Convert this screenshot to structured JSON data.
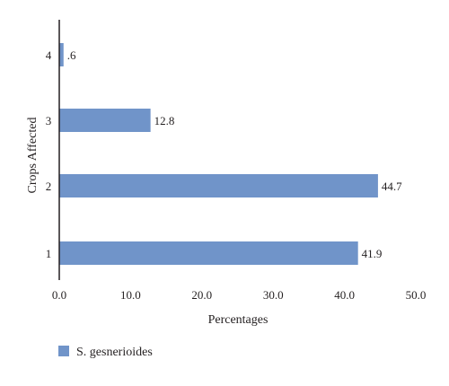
{
  "chart_data": {
    "type": "bar",
    "orientation": "horizontal",
    "categories": [
      "1",
      "2",
      "3",
      "4"
    ],
    "series": [
      {
        "name": "S. gesnerioides",
        "values": [
          41.9,
          44.7,
          12.8,
          0.6
        ],
        "value_labels": [
          "41.9",
          "44.7",
          "12.8",
          ".6"
        ]
      }
    ],
    "xlabel": "Percentages",
    "ylabel": "Crops Affected",
    "xlim": [
      0,
      50
    ],
    "xticks": [
      "0.0",
      "10.0",
      "20.0",
      "30.0",
      "40.0",
      "50.0"
    ],
    "grid": false,
    "legend_position": "bottom-left",
    "colors": {
      "bar": "#7094c9",
      "axis": "#231f20"
    }
  }
}
